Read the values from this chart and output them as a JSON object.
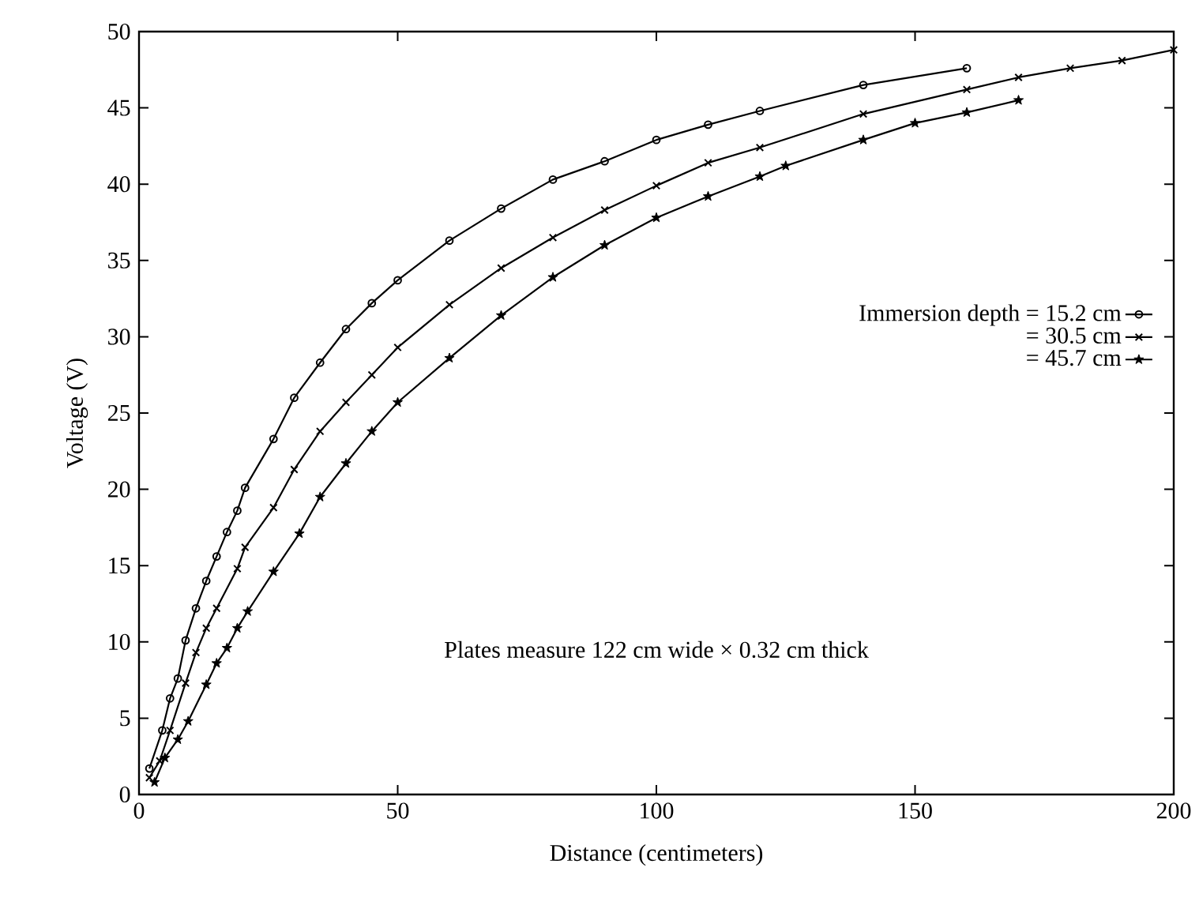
{
  "chart_data": {
    "type": "line",
    "xlabel": "Distance (centimeters)",
    "ylabel": "Voltage (V)",
    "xlim": [
      0,
      200
    ],
    "xticks": [
      0,
      50,
      100,
      150,
      200
    ],
    "ylim": [
      0,
      50
    ],
    "yticks": [
      0,
      5,
      10,
      15,
      20,
      25,
      30,
      35,
      40,
      45,
      50
    ],
    "grid": false,
    "legend": "right",
    "line_style": "solid",
    "annotations": [
      "Plates measure 122 cm wide × 0.32 cm thick"
    ],
    "series": [
      {
        "name": "Immersion depth = 15.2 cm",
        "color": "#000000",
        "marker": "circle",
        "x": [
          2,
          4.5,
          6,
          7.5,
          9,
          11,
          13,
          15,
          17,
          19,
          20.5,
          26,
          30,
          35,
          40,
          45,
          50,
          60,
          70,
          80,
          90,
          100,
          110,
          120,
          140,
          160
        ],
        "values": [
          1.7,
          4.2,
          6.3,
          7.6,
          10.1,
          12.2,
          14,
          15.6,
          17.2,
          18.6,
          20.1,
          23.3,
          26,
          28.3,
          30.5,
          32.2,
          33.7,
          36.3,
          38.4,
          40.3,
          41.5,
          42.9,
          43.9,
          44.8,
          46.5,
          47.6
        ]
      },
      {
        "name": "= 30.5 cm",
        "color": "#000000",
        "marker": "cross",
        "x": [
          2,
          4,
          6,
          9,
          11,
          13,
          15,
          19,
          20.5,
          26,
          30,
          35,
          40,
          45,
          50,
          60,
          70,
          80,
          90,
          100,
          110,
          120,
          140,
          160,
          170,
          180,
          190,
          200
        ],
        "values": [
          1.1,
          2.2,
          4.2,
          7.3,
          9.3,
          10.9,
          12.2,
          14.8,
          16.2,
          18.8,
          21.3,
          23.8,
          25.7,
          27.5,
          29.3,
          32.1,
          34.5,
          36.5,
          38.3,
          39.9,
          41.4,
          42.4,
          44.6,
          46.2,
          47,
          47.6,
          48.1,
          48.8
        ]
      },
      {
        "name": "= 45.7 cm",
        "color": "#000000",
        "marker": "star",
        "x": [
          3,
          5,
          7.5,
          9.5,
          13,
          15,
          17,
          19,
          21,
          26,
          31,
          35,
          40,
          45,
          50,
          60,
          70,
          80,
          90,
          100,
          110,
          120,
          125,
          140,
          150,
          160,
          170
        ],
        "values": [
          0.8,
          2.4,
          3.6,
          4.8,
          7.2,
          8.6,
          9.6,
          10.9,
          12,
          14.6,
          17.1,
          19.5,
          21.7,
          23.8,
          25.7,
          28.6,
          31.4,
          33.9,
          36,
          37.8,
          39.2,
          40.5,
          41.2,
          42.9,
          44,
          44.7,
          45.5
        ]
      }
    ]
  }
}
